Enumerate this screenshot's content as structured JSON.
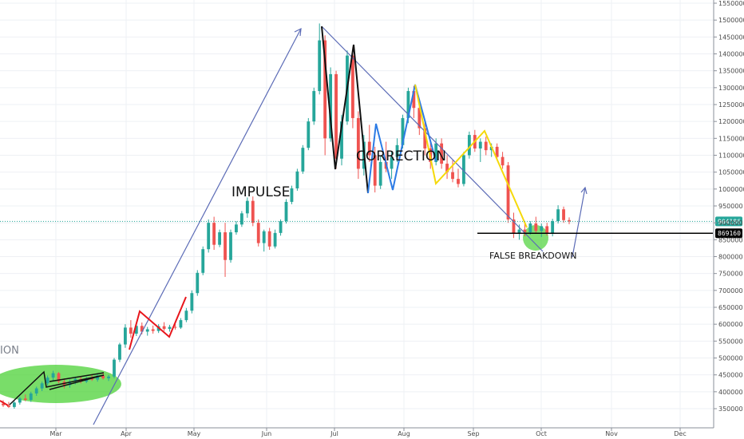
{
  "chart_data": {
    "type": "candlestick",
    "title": "",
    "xlabel": "",
    "ylabel": "",
    "ylim": [
      300000,
      1550000
    ],
    "y_ticks": [
      350000,
      400000,
      450000,
      500000,
      550000,
      600000,
      650000,
      700000,
      750000,
      800000,
      850000,
      900000,
      950000,
      1000000,
      1050000,
      1100000,
      1150000,
      1200000,
      1250000,
      1300000,
      1350000,
      1400000,
      1450000,
      1500000,
      1550000
    ],
    "x_labels": [
      "Mar",
      "Apr",
      "May",
      "Jun",
      "Jul",
      "Aug",
      "Sep",
      "Oct",
      "Nov",
      "Dec"
    ],
    "grid": true,
    "colors": {
      "up": "#26a69a",
      "down": "#ef5350",
      "impulse_arrow": "#5b6bb6",
      "green_zone": "#4cd137",
      "yellow_wave": "#f5d90a",
      "blue_wave": "#2c7be5",
      "red_wave": "#e8151b",
      "black_wave": "#111111",
      "price_line": "#26a69a",
      "level_line": "#000000"
    },
    "price_levels": [
      {
        "label": "904186",
        "value": 904186,
        "badge_color": "#26a69a",
        "line_style": "dotted"
      },
      {
        "label": "869160",
        "value": 869160,
        "badge_color": "#000000",
        "line_style": "solid"
      }
    ],
    "annotations": [
      "IMPULSE",
      "CORRECTION",
      "FALSE BREAKDOWN",
      "ION"
    ],
    "series": [
      {
        "name": "",
        "ohlc": [
          [
            365000,
            375000,
            355000,
            360000
          ],
          [
            360000,
            370000,
            352000,
            355000
          ],
          [
            355000,
            372000,
            350000,
            368000
          ],
          [
            368000,
            385000,
            362000,
            380000
          ],
          [
            380000,
            392000,
            372000,
            376000
          ],
          [
            376000,
            400000,
            370000,
            395000
          ],
          [
            395000,
            415000,
            388000,
            410000
          ],
          [
            410000,
            430000,
            402000,
            425000
          ],
          [
            425000,
            448000,
            418000,
            442000
          ],
          [
            442000,
            462000,
            432000,
            455000
          ],
          [
            455000,
            458000,
            425000,
            430000
          ],
          [
            430000,
            440000,
            410000,
            420000
          ],
          [
            420000,
            436000,
            412000,
            430000
          ],
          [
            430000,
            445000,
            422000,
            438000
          ],
          [
            438000,
            446000,
            425000,
            430000
          ],
          [
            430000,
            444000,
            426000,
            440000
          ],
          [
            440000,
            450000,
            432000,
            436000
          ],
          [
            436000,
            452000,
            430000,
            448000
          ],
          [
            448000,
            455000,
            436000,
            440000
          ],
          [
            440000,
            450000,
            432000,
            445000
          ],
          [
            445000,
            500000,
            440000,
            495000
          ],
          [
            495000,
            545000,
            488000,
            540000
          ],
          [
            540000,
            600000,
            530000,
            590000
          ],
          [
            590000,
            612000,
            560000,
            572000
          ],
          [
            572000,
            600000,
            565000,
            595000
          ],
          [
            595000,
            605000,
            570000,
            578000
          ],
          [
            578000,
            592000,
            566000,
            585000
          ],
          [
            585000,
            596000,
            572000,
            580000
          ],
          [
            580000,
            600000,
            574000,
            594000
          ],
          [
            594000,
            606000,
            580000,
            586000
          ],
          [
            586000,
            598000,
            578000,
            592000
          ],
          [
            592000,
            604000,
            584000,
            590000
          ],
          [
            590000,
            618000,
            586000,
            612000
          ],
          [
            612000,
            648000,
            606000,
            640000
          ],
          [
            640000,
            700000,
            632000,
            692000
          ],
          [
            692000,
            760000,
            684000,
            752000
          ],
          [
            752000,
            830000,
            745000,
            822000
          ],
          [
            822000,
            910000,
            812000,
            900000
          ],
          [
            900000,
            918000,
            820000,
            835000
          ],
          [
            835000,
            880000,
            828000,
            872000
          ],
          [
            872000,
            900000,
            740000,
            790000
          ],
          [
            790000,
            880000,
            782000,
            872000
          ],
          [
            872000,
            905000,
            865000,
            895000
          ],
          [
            895000,
            935000,
            888000,
            928000
          ],
          [
            928000,
            975000,
            915000,
            965000
          ],
          [
            965000,
            978000,
            890000,
            900000
          ],
          [
            900000,
            910000,
            830000,
            840000
          ],
          [
            840000,
            880000,
            815000,
            875000
          ],
          [
            875000,
            885000,
            820000,
            830000
          ],
          [
            830000,
            880000,
            824000,
            870000
          ],
          [
            870000,
            910000,
            862000,
            905000
          ],
          [
            905000,
            970000,
            898000,
            962000
          ],
          [
            962000,
            1010000,
            955000,
            1002000
          ],
          [
            1002000,
            1060000,
            995000,
            1052000
          ],
          [
            1052000,
            1130000,
            1045000,
            1122000
          ],
          [
            1122000,
            1210000,
            1115000,
            1200000
          ],
          [
            1200000,
            1300000,
            1190000,
            1290000
          ],
          [
            1290000,
            1490000,
            1280000,
            1440000
          ],
          [
            1440000,
            1455000,
            1100000,
            1150000
          ],
          [
            1150000,
            1360000,
            1140000,
            1340000
          ],
          [
            1340000,
            1350000,
            1060000,
            1090000
          ],
          [
            1090000,
            1220000,
            1070000,
            1200000
          ],
          [
            1200000,
            1410000,
            1190000,
            1395000
          ],
          [
            1395000,
            1420000,
            1180000,
            1210000
          ],
          [
            1210000,
            1230000,
            1030000,
            1060000
          ],
          [
            1060000,
            1160000,
            1040000,
            1140000
          ],
          [
            1140000,
            1190000,
            1080000,
            1100000
          ],
          [
            1100000,
            1125000,
            990000,
            1010000
          ],
          [
            1010000,
            1100000,
            1000000,
            1080000
          ],
          [
            1080000,
            1140000,
            1050000,
            1060000
          ],
          [
            1060000,
            1110000,
            1030000,
            1095000
          ],
          [
            1095000,
            1150000,
            1080000,
            1130000
          ],
          [
            1130000,
            1220000,
            1120000,
            1210000
          ],
          [
            1210000,
            1300000,
            1195000,
            1290000
          ],
          [
            1290000,
            1305000,
            1210000,
            1240000
          ],
          [
            1240000,
            1260000,
            1160000,
            1180000
          ],
          [
            1180000,
            1200000,
            1100000,
            1120000
          ],
          [
            1120000,
            1140000,
            1060000,
            1080000
          ],
          [
            1080000,
            1150000,
            1070000,
            1135000
          ],
          [
            1135000,
            1150000,
            1060000,
            1075000
          ],
          [
            1075000,
            1100000,
            1030000,
            1050000
          ],
          [
            1050000,
            1085000,
            1020000,
            1030000
          ],
          [
            1030000,
            1060000,
            1005000,
            1015000
          ],
          [
            1015000,
            1110000,
            1008000,
            1100000
          ],
          [
            1100000,
            1170000,
            1090000,
            1160000
          ],
          [
            1160000,
            1175000,
            1110000,
            1120000
          ],
          [
            1120000,
            1150000,
            1080000,
            1140000
          ],
          [
            1140000,
            1155000,
            1100000,
            1115000
          ],
          [
            1115000,
            1135000,
            1095000,
            1125000
          ],
          [
            1125000,
            1135000,
            1085000,
            1095000
          ],
          [
            1095000,
            1110000,
            1060000,
            1070000
          ],
          [
            1070000,
            1080000,
            900000,
            910000
          ],
          [
            910000,
            930000,
            855000,
            868000
          ],
          [
            868000,
            895000,
            850000,
            880000
          ],
          [
            880000,
            902000,
            860000,
            872000
          ],
          [
            872000,
            905000,
            865000,
            898000
          ],
          [
            898000,
            918000,
            870000,
            876000
          ],
          [
            876000,
            898000,
            858000,
            890000
          ],
          [
            890000,
            900000,
            862000,
            868000
          ],
          [
            868000,
            912000,
            860000,
            905000
          ],
          [
            905000,
            952000,
            898000,
            940000
          ],
          [
            940000,
            948000,
            900000,
            908000
          ],
          [
            908000,
            916000,
            896000,
            904186
          ]
        ]
      }
    ]
  }
}
